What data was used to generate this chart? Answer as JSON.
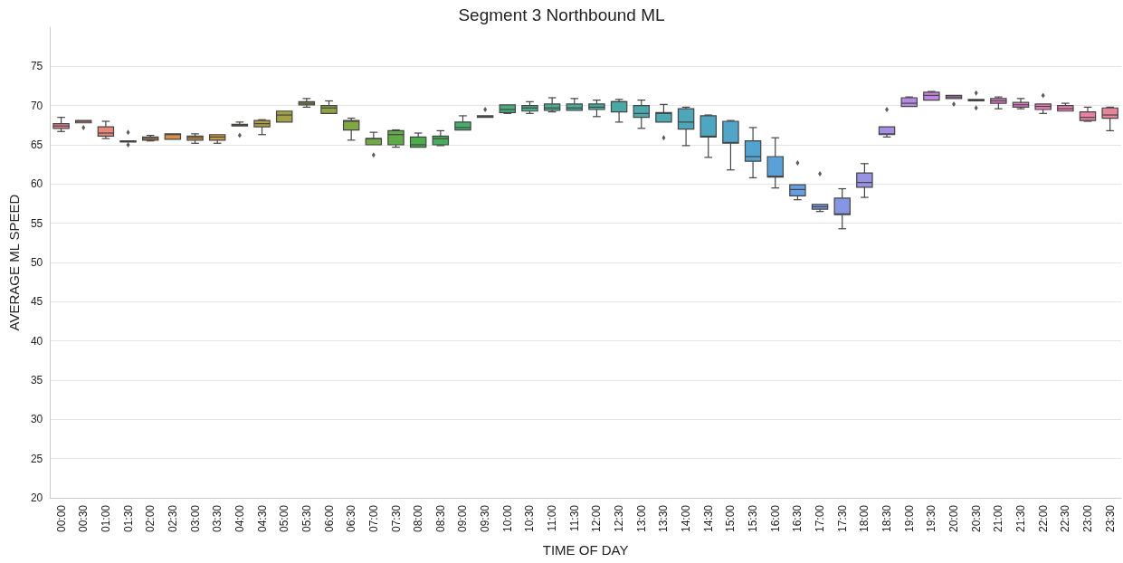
{
  "chart_data": {
    "type": "box",
    "title": "Segment 3 Northbound ML",
    "xlabel": "TIME OF DAY",
    "ylabel": "AVERAGE ML SPEED",
    "categories": [
      "00:00",
      "00:30",
      "01:00",
      "01:30",
      "02:00",
      "02:30",
      "03:00",
      "03:30",
      "04:00",
      "04:30",
      "05:00",
      "05:30",
      "06:00",
      "06:30",
      "07:00",
      "07:30",
      "08:00",
      "08:30",
      "09:00",
      "09:30",
      "10:00",
      "10:30",
      "11:00",
      "11:30",
      "12:00",
      "12:30",
      "13:00",
      "13:30",
      "14:00",
      "14:30",
      "15:00",
      "15:30",
      "16:00",
      "16:30",
      "17:00",
      "17:30",
      "18:00",
      "18:30",
      "19:00",
      "19:30",
      "20:00",
      "20:30",
      "21:00",
      "21:30",
      "22:00",
      "22:30",
      "23:00",
      "23:30"
    ],
    "boxes": [
      {
        "low": 66.7,
        "q1": 67.1,
        "median": 67.4,
        "q3": 67.7,
        "high": 68.5
      },
      {
        "low": 67.8,
        "q1": 67.8,
        "median": 68.0,
        "q3": 68.1,
        "high": 68.1,
        "outliers": [
          67.2
        ]
      },
      {
        "low": 65.8,
        "q1": 66.1,
        "median": 66.5,
        "q3": 67.3,
        "high": 68.0
      },
      {
        "low": 65.35,
        "q1": 65.35,
        "median": 65.45,
        "q3": 65.5,
        "high": 65.5,
        "outliers": [
          66.6,
          65.0
        ]
      },
      {
        "low": 65.5,
        "q1": 65.6,
        "median": 65.8,
        "q3": 66.0,
        "high": 66.2
      },
      {
        "low": 65.7,
        "q1": 65.7,
        "median": 66.3,
        "q3": 66.4,
        "high": 66.4
      },
      {
        "low": 65.2,
        "q1": 65.6,
        "median": 65.9,
        "q3": 66.1,
        "high": 66.4
      },
      {
        "low": 65.2,
        "q1": 65.6,
        "median": 66.0,
        "q3": 66.3,
        "high": 66.3
      },
      {
        "low": 67.4,
        "q1": 67.4,
        "median": 67.5,
        "q3": 67.6,
        "high": 67.9,
        "outliers": [
          66.2
        ]
      },
      {
        "low": 66.3,
        "q1": 67.3,
        "median": 67.7,
        "q3": 68.1,
        "high": 68.2
      },
      {
        "low": 67.9,
        "q1": 67.9,
        "median": 68.8,
        "q3": 69.3,
        "high": 69.3
      },
      {
        "low": 69.8,
        "q1": 70.1,
        "median": 70.3,
        "q3": 70.5,
        "high": 70.9
      },
      {
        "low": 69.0,
        "q1": 69.0,
        "median": 69.7,
        "q3": 70.0,
        "high": 70.6
      },
      {
        "low": 65.6,
        "q1": 66.9,
        "median": 68.0,
        "q3": 68.1,
        "high": 68.4
      },
      {
        "low": 65.0,
        "q1": 65.0,
        "median": 65.8,
        "q3": 65.8,
        "high": 66.6,
        "outliers": [
          63.7
        ]
      },
      {
        "low": 64.7,
        "q1": 65.0,
        "median": 66.3,
        "q3": 66.8,
        "high": 66.9
      },
      {
        "low": 64.7,
        "q1": 64.7,
        "median": 65.0,
        "q3": 66.0,
        "high": 66.5
      },
      {
        "low": 64.9,
        "q1": 65.0,
        "median": 65.8,
        "q3": 66.1,
        "high": 66.8
      },
      {
        "low": 66.9,
        "q1": 66.9,
        "median": 67.2,
        "q3": 67.9,
        "high": 68.7
      },
      {
        "low": 68.5,
        "q1": 68.5,
        "median": 68.6,
        "q3": 68.7,
        "high": 68.7,
        "outliers": [
          69.5
        ]
      },
      {
        "low": 69.0,
        "q1": 69.1,
        "median": 69.5,
        "q3": 70.1,
        "high": 70.1
      },
      {
        "low": 69.0,
        "q1": 69.3,
        "median": 69.7,
        "q3": 70.0,
        "high": 70.5
      },
      {
        "low": 69.2,
        "q1": 69.4,
        "median": 69.7,
        "q3": 70.2,
        "high": 71.0
      },
      {
        "low": 69.4,
        "q1": 69.4,
        "median": 69.7,
        "q3": 70.2,
        "high": 70.9
      },
      {
        "low": 68.6,
        "q1": 69.5,
        "median": 69.8,
        "q3": 70.2,
        "high": 70.7
      },
      {
        "low": 67.9,
        "q1": 69.2,
        "median": 70.5,
        "q3": 70.5,
        "high": 70.8
      },
      {
        "low": 67.1,
        "q1": 68.5,
        "median": 69.0,
        "q3": 70.0,
        "high": 70.7
      },
      {
        "low": 67.9,
        "q1": 67.9,
        "median": 69.0,
        "q3": 69.1,
        "high": 70.15,
        "outliers": [
          65.9
        ]
      },
      {
        "low": 64.9,
        "q1": 67.0,
        "median": 67.9,
        "q3": 69.6,
        "high": 69.8
      },
      {
        "low": 63.4,
        "q1": 66.0,
        "median": 66.1,
        "q3": 68.7,
        "high": 68.8
      },
      {
        "low": 61.8,
        "q1": 65.2,
        "median": 65.3,
        "q3": 68.0,
        "high": 68.1
      },
      {
        "low": 60.8,
        "q1": 62.9,
        "median": 63.5,
        "q3": 65.5,
        "high": 67.2
      },
      {
        "low": 59.5,
        "q1": 60.9,
        "median": 61.0,
        "q3": 63.5,
        "high": 65.9
      },
      {
        "low": 58.0,
        "q1": 58.5,
        "median": 59.3,
        "q3": 59.9,
        "high": 59.9,
        "outliers": [
          62.7
        ]
      },
      {
        "low": 56.5,
        "q1": 56.8,
        "median": 57.1,
        "q3": 57.4,
        "high": 57.4,
        "outliers": [
          61.3
        ]
      },
      {
        "low": 54.3,
        "q1": 56.1,
        "median": 56.2,
        "q3": 58.2,
        "high": 59.4
      },
      {
        "low": 58.3,
        "q1": 59.6,
        "median": 60.2,
        "q3": 61.4,
        "high": 62.6
      },
      {
        "low": 66.0,
        "q1": 66.3,
        "median": 66.4,
        "q3": 67.3,
        "high": 67.3,
        "outliers": [
          69.5
        ]
      },
      {
        "low": 69.9,
        "q1": 69.9,
        "median": 70.3,
        "q3": 71.0,
        "high": 71.1
      },
      {
        "low": 70.7,
        "q1": 70.7,
        "median": 71.3,
        "q3": 71.7,
        "high": 71.8
      },
      {
        "low": 70.9,
        "q1": 70.9,
        "median": 71.1,
        "q3": 71.3,
        "high": 71.3,
        "outliers": [
          70.2
        ]
      },
      {
        "low": 70.6,
        "q1": 70.6,
        "median": 70.7,
        "q3": 70.8,
        "high": 70.8,
        "outliers": [
          71.6,
          69.7
        ]
      },
      {
        "low": 69.6,
        "q1": 70.3,
        "median": 70.6,
        "q3": 70.9,
        "high": 71.1
      },
      {
        "low": 69.6,
        "q1": 69.8,
        "median": 70.1,
        "q3": 70.4,
        "high": 70.9
      },
      {
        "low": 69.0,
        "q1": 69.5,
        "median": 69.9,
        "q3": 70.2,
        "high": 70.2,
        "outliers": [
          71.3
        ]
      },
      {
        "low": 69.3,
        "q1": 69.3,
        "median": 69.6,
        "q3": 70.0,
        "high": 70.3
      },
      {
        "low": 68.0,
        "q1": 68.1,
        "median": 68.5,
        "q3": 69.2,
        "high": 69.8
      },
      {
        "low": 66.8,
        "q1": 68.4,
        "median": 68.8,
        "q3": 69.7,
        "high": 69.8
      }
    ],
    "colors": [
      "#e8828f",
      "#e88585",
      "#e78879",
      "#e28a6a",
      "#dd8d5a",
      "#d6904c",
      "#cd9445",
      "#c39843",
      "#b89b43",
      "#ae9d44",
      "#a3a044",
      "#98a245",
      "#8ca445",
      "#7fa746",
      "#70a946",
      "#5fab47",
      "#4dad4c",
      "#45ad5c",
      "#46ad6a",
      "#47ad76",
      "#48ac80",
      "#48ac89",
      "#49ab91",
      "#49ab98",
      "#4aaa9f",
      "#4aa9a6",
      "#4ba9ac",
      "#4ca8b2",
      "#4da7b9",
      "#4ea6c0",
      "#50a5c8",
      "#53a3d0",
      "#5aa1d9",
      "#669ee1",
      "#769ae3",
      "#8796e3",
      "#9792e3",
      "#a68ee3",
      "#b48ae3",
      "#c186e2",
      "#cc82de",
      "#d680d7",
      "#de7fcd",
      "#e27fc3",
      "#e580b9",
      "#e781af",
      "#e882a5",
      "#e8849a"
    ],
    "ylim": [
      20,
      80
    ],
    "yticks": [
      20,
      25,
      30,
      35,
      40,
      45,
      50,
      55,
      60,
      65,
      70,
      75
    ],
    "grid": "y"
  }
}
